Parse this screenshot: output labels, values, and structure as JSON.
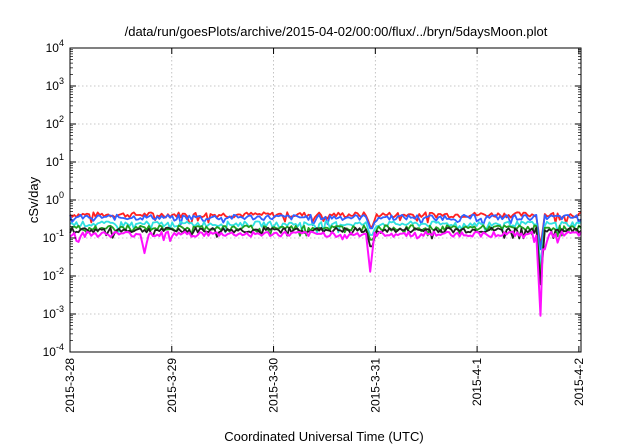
{
  "chart_data": {
    "type": "line",
    "title": "/data/run/goesPlots/archive/2015-04-02/00:00/flux/../bryn/5daysMoon.plot",
    "xlabel": "Coordinated Universal Time (UTC)",
    "ylabel": "cSv/day",
    "y_scale": "log",
    "ylim": [
      0.0001,
      10000
    ],
    "xlim": [
      "2015-03-28T00:00",
      "2015-04-02T00:30"
    ],
    "y_ticks": [
      {
        "value": 0.0001,
        "mantissa": "10",
        "exp": "-4"
      },
      {
        "value": 0.001,
        "mantissa": "10",
        "exp": "-3"
      },
      {
        "value": 0.01,
        "mantissa": "10",
        "exp": "-2"
      },
      {
        "value": 0.1,
        "mantissa": "10",
        "exp": "-1"
      },
      {
        "value": 1,
        "mantissa": "10",
        "exp": "0"
      },
      {
        "value": 10,
        "mantissa": "10",
        "exp": "1"
      },
      {
        "value": 100,
        "mantissa": "10",
        "exp": "2"
      },
      {
        "value": 1000,
        "mantissa": "10",
        "exp": "3"
      },
      {
        "value": 10000,
        "mantissa": "10",
        "exp": "4"
      }
    ],
    "x_ticks": [
      {
        "value": "2015-03-28T00:00",
        "label": "2015-3-28"
      },
      {
        "value": "2015-03-29T00:00",
        "label": "2015-3-29"
      },
      {
        "value": "2015-03-30T00:00",
        "label": "2015-3-30"
      },
      {
        "value": "2015-03-31T00:00",
        "label": "2015-3-31"
      },
      {
        "value": "2015-04-01T00:00",
        "label": "2015-4-1"
      },
      {
        "value": "2015-04-02T00:00",
        "label": "2015-4-2"
      }
    ],
    "grid": true,
    "legend": "none",
    "series": [
      {
        "color": "#ff2020",
        "level": 0.42,
        "dips": [
          {
            "x": "2015-03-30T23:00",
            "y": 0.2
          },
          {
            "x": "2015-04-01T15:00",
            "y": 0.06
          }
        ]
      },
      {
        "color": "#3060ff",
        "level": 0.36,
        "dips": [
          {
            "x": "2015-03-30T23:00",
            "y": 0.18
          },
          {
            "x": "2015-04-01T15:00",
            "y": 0.05
          }
        ]
      },
      {
        "color": "#30e0e0",
        "level": 0.24,
        "dips": [
          {
            "x": "2015-03-30T23:00",
            "y": 0.12
          },
          {
            "x": "2015-04-01T15:00",
            "y": 0.02
          }
        ]
      },
      {
        "color": "#20a020",
        "level": 0.19,
        "dips": [
          {
            "x": "2015-03-30T23:00",
            "y": 0.09
          },
          {
            "x": "2015-04-01T15:00",
            "y": 0.01
          }
        ]
      },
      {
        "color": "#202020",
        "level": 0.165,
        "dips": [
          {
            "x": "2015-03-30T23:00",
            "y": 0.06
          },
          {
            "x": "2015-04-01T15:00",
            "y": 0.006
          }
        ]
      },
      {
        "color": "#ff10ff",
        "level": 0.13,
        "dips": [
          {
            "x": "2015-03-28T17:30",
            "y": 0.04
          },
          {
            "x": "2015-03-30T22:50",
            "y": 0.013
          },
          {
            "x": "2015-04-01T15:10",
            "y": 0.0009
          },
          {
            "x": "2015-04-01T15:40",
            "y": 0.05
          }
        ]
      }
    ]
  }
}
